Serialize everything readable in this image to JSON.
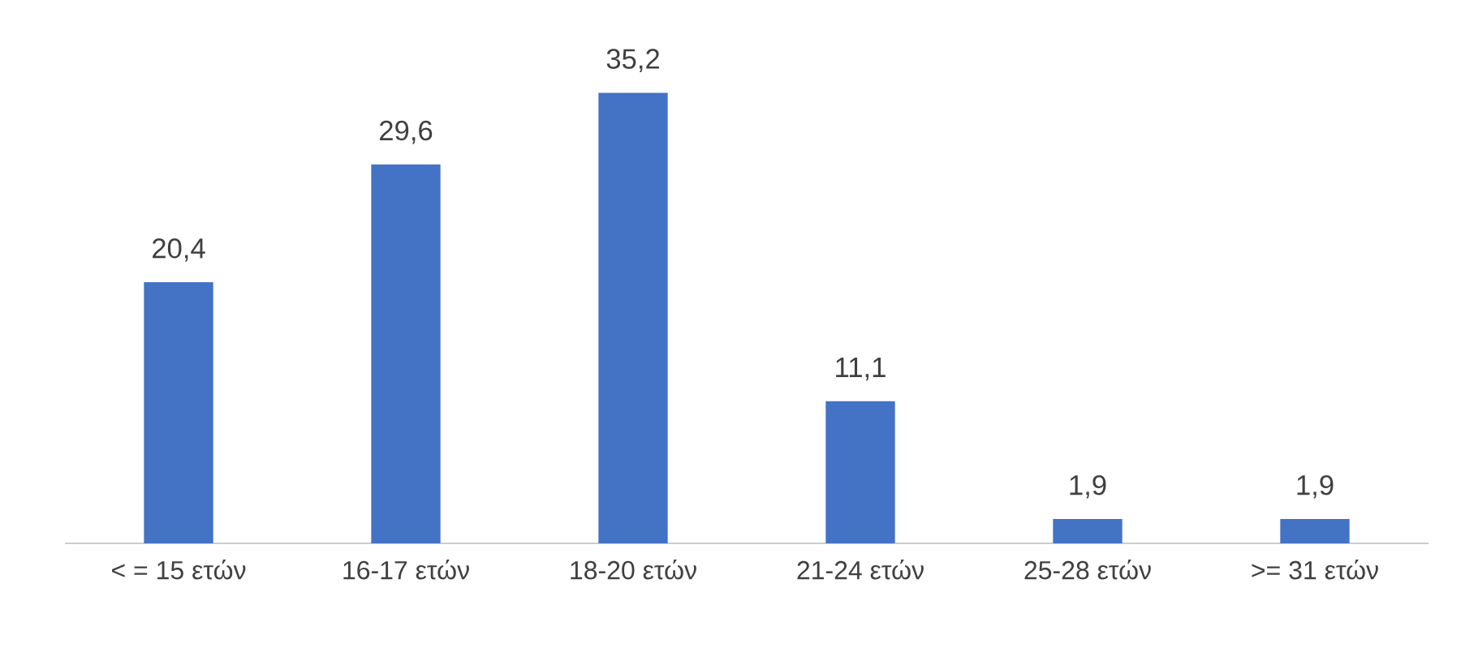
{
  "chart_data": {
    "type": "bar",
    "categories": [
      "< = 15 ετών",
      "16-17 ετών",
      "18-20 ετών",
      "21-24 ετών",
      "25-28 ετών",
      ">= 31 ετών"
    ],
    "values": [
      20.4,
      29.6,
      35.2,
      11.1,
      1.9,
      1.9
    ],
    "value_labels": [
      "20,4",
      "29,6",
      "35,2",
      "11,1",
      "1,9",
      "1,9"
    ],
    "color": "#4472c4"
  }
}
